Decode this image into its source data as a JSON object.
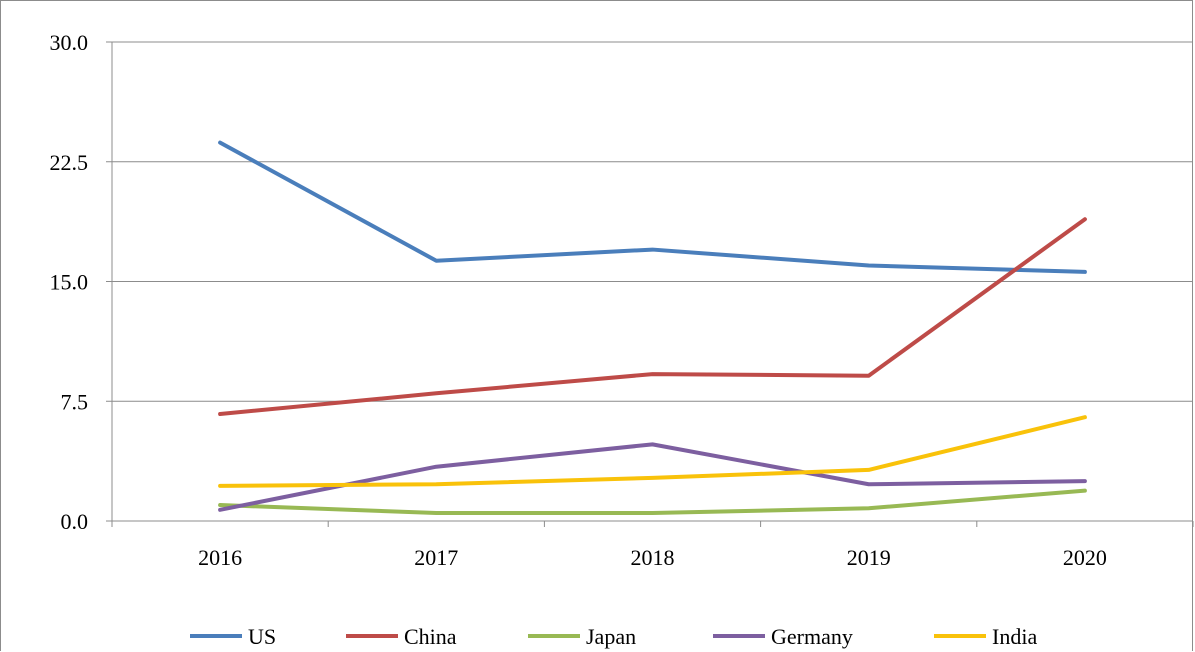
{
  "chart_data": {
    "type": "line",
    "categories": [
      "2016",
      "2017",
      "2018",
      "2019",
      "2020"
    ],
    "y_tick_labels": [
      "0.0",
      "7.5",
      "15.0",
      "22.5",
      "30.0"
    ],
    "ylim": [
      0,
      30
    ],
    "grid": true,
    "legend_position": "bottom",
    "series": [
      {
        "name": "US",
        "color": "#4a7ebb",
        "values": [
          23.7,
          16.3,
          17.0,
          16.0,
          15.6
        ]
      },
      {
        "name": "China",
        "color": "#be4b48",
        "values": [
          6.7,
          8.0,
          9.2,
          9.1,
          18.9
        ]
      },
      {
        "name": "Japan",
        "color": "#98b954",
        "values": [
          1.0,
          0.5,
          0.5,
          0.8,
          1.9
        ]
      },
      {
        "name": "Germany",
        "color": "#7d5fa0",
        "values": [
          0.7,
          3.4,
          4.8,
          2.3,
          2.5
        ]
      },
      {
        "name": "India",
        "color": "#f9c20a",
        "values": [
          2.2,
          2.3,
          2.7,
          3.2,
          6.5
        ]
      }
    ]
  }
}
